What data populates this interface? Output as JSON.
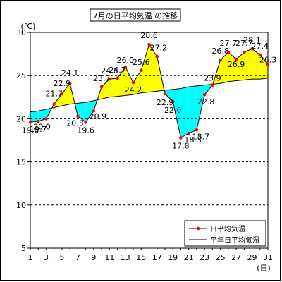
{
  "chart_data": {
    "type": "line",
    "title": "7月の日平均気温 の推移",
    "ylabel": "(℃)",
    "xlabel": "(日)",
    "ylim": [
      5,
      30
    ],
    "yticks": [
      5,
      10,
      15,
      20,
      25,
      30
    ],
    "xlim": [
      1,
      31
    ],
    "xticks": [
      1,
      3,
      5,
      7,
      9,
      11,
      13,
      15,
      17,
      19,
      21,
      23,
      25,
      27,
      29,
      31
    ],
    "grid": "dashed horizontal at 15, 20, 25",
    "x": [
      1,
      2,
      3,
      4,
      5,
      6,
      7,
      8,
      9,
      10,
      11,
      12,
      13,
      14,
      15,
      16,
      17,
      18,
      19,
      20,
      21,
      22,
      23,
      24,
      25,
      26,
      27,
      28,
      29,
      30,
      31
    ],
    "series": [
      {
        "name": "日平均気温",
        "color": "#ff0000",
        "values": [
          19.6,
          19.7,
          20.0,
          21.7,
          22.9,
          24.1,
          20.3,
          19.6,
          20.9,
          23.7,
          24.6,
          24.7,
          26.0,
          24.2,
          25.6,
          28.6,
          27.2,
          22.9,
          22.0,
          17.8,
          18.3,
          18.7,
          22.8,
          23.9,
          26.8,
          27.7,
          26.9,
          27.7,
          28.1,
          27.4,
          26.3
        ]
      },
      {
        "name": "平年日平均気温",
        "color": "#000000",
        "values": [
          20.8,
          20.9,
          21.1,
          21.3,
          21.5,
          21.7,
          21.8,
          21.9,
          22.1,
          22.3,
          22.5,
          22.6,
          22.7,
          22.8,
          23.0,
          23.1,
          23.2,
          23.3,
          23.4,
          23.5,
          23.7,
          23.8,
          23.9,
          24.0,
          24.1,
          24.3,
          24.4,
          24.5,
          24.6,
          24.6,
          24.7
        ]
      }
    ],
    "fill_above_color": "#ffff00",
    "fill_below_color": "#00ffff",
    "data_label_values": [
      19.6,
      19.7,
      20.0,
      21.7,
      22.9,
      24.1,
      20.3,
      19.6,
      20.9,
      23.7,
      24.6,
      24.7,
      26.0,
      24.2,
      25.6,
      28.6,
      27.2,
      22.9,
      22.0,
      17.8,
      18.3,
      18.7,
      22.8,
      23.9,
      26.8,
      27.7,
      26.9,
      27.7,
      28.1,
      27.4,
      26.3
    ],
    "legend": {
      "placement": "bottom-right",
      "items": [
        "日平均気温",
        "平年日平均気温"
      ]
    }
  }
}
